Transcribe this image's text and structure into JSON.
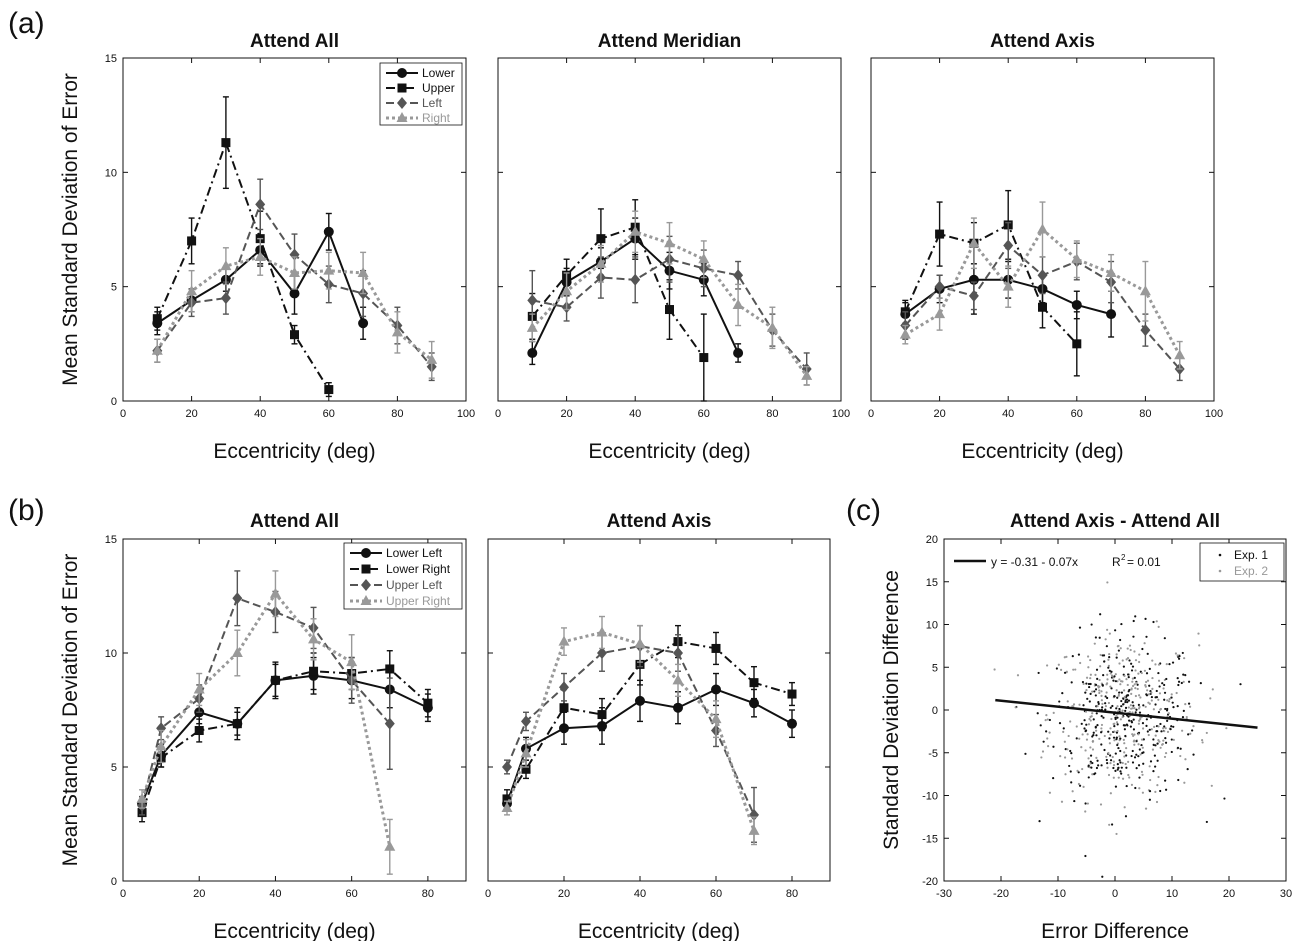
{
  "figure": {
    "panel_labels": [
      "(a)",
      "(b)",
      "(c)"
    ]
  },
  "chart_data": [
    {
      "type": "line",
      "panel": "(a)",
      "title": "Attend All",
      "xlabel": "Eccentricity (deg)",
      "ylabel": "Mean Standard Deviation of Error",
      "xlim": [
        0,
        100
      ],
      "ylim": [
        0,
        15
      ],
      "xticks": [
        0,
        20,
        40,
        60,
        80,
        100
      ],
      "yticks": [
        0,
        5,
        10,
        15
      ],
      "legend": "top-right",
      "series": [
        {
          "name": "Lower",
          "style": "solid",
          "color": "#111111",
          "marker": "circle",
          "x": [
            10,
            20,
            30,
            40,
            50,
            60,
            70
          ],
          "y": [
            3.4,
            4.4,
            5.3,
            6.6,
            4.7,
            7.4,
            3.4
          ],
          "err": [
            0.5,
            0.5,
            0.5,
            0.6,
            0.9,
            0.8,
            0.7
          ]
        },
        {
          "name": "Upper",
          "style": "dashdot",
          "color": "#111111",
          "marker": "square",
          "x": [
            10,
            20,
            30,
            40,
            50,
            60
          ],
          "y": [
            3.6,
            7.0,
            11.3,
            7.1,
            2.9,
            0.5
          ],
          "err": [
            0.5,
            1.0,
            2.0,
            1.2,
            0.4,
            0.3
          ]
        },
        {
          "name": "Left",
          "style": "dashed",
          "color": "#555555",
          "marker": "diamond",
          "x": [
            10,
            20,
            30,
            40,
            50,
            60,
            70,
            80,
            90
          ],
          "y": [
            2.2,
            4.3,
            4.5,
            8.6,
            6.4,
            5.1,
            4.7,
            3.3,
            1.5
          ],
          "err": [
            0.5,
            0.6,
            0.7,
            1.1,
            0.9,
            0.8,
            1.0,
            0.8,
            0.6
          ]
        },
        {
          "name": "Right",
          "style": "dotted",
          "color": "#999999",
          "marker": "triangle",
          "x": [
            10,
            20,
            30,
            40,
            50,
            60,
            70,
            80,
            90
          ],
          "y": [
            2.2,
            4.8,
            5.9,
            6.3,
            5.6,
            5.7,
            5.6,
            3.0,
            1.8
          ],
          "err": [
            0.5,
            0.9,
            0.8,
            0.8,
            0.7,
            0.8,
            0.9,
            0.9,
            0.8
          ]
        }
      ]
    },
    {
      "type": "line",
      "panel": "(a)",
      "title": "Attend Meridian",
      "xlabel": "Eccentricity (deg)",
      "xlim": [
        0,
        100
      ],
      "ylim": [
        0,
        15
      ],
      "xticks": [
        0,
        20,
        40,
        60,
        80,
        100
      ],
      "series": [
        {
          "style": "solid",
          "color": "#111111",
          "marker": "circle",
          "x": [
            10,
            20,
            30,
            40,
            50,
            60,
            70
          ],
          "y": [
            2.1,
            5.2,
            6.1,
            7.1,
            5.7,
            5.3,
            2.1
          ],
          "err": [
            0.5,
            0.6,
            0.6,
            0.9,
            0.8,
            0.7,
            0.4
          ]
        },
        {
          "style": "dashdot",
          "color": "#111111",
          "marker": "square",
          "x": [
            10,
            20,
            30,
            40,
            50,
            60
          ],
          "y": [
            3.7,
            5.5,
            7.1,
            7.6,
            4.0,
            1.9
          ],
          "err": [
            1.0,
            0.7,
            1.3,
            1.2,
            1.3,
            1.9
          ]
        },
        {
          "style": "dashed",
          "color": "#555555",
          "marker": "diamond",
          "x": [
            10,
            20,
            30,
            40,
            50,
            60,
            70,
            80,
            90
          ],
          "y": [
            4.4,
            4.1,
            5.4,
            5.3,
            6.2,
            5.8,
            5.5,
            3.1,
            1.4
          ],
          "err": [
            1.3,
            0.6,
            0.9,
            1.0,
            1.0,
            0.8,
            0.6,
            0.7,
            0.7
          ]
        },
        {
          "style": "dotted",
          "color": "#999999",
          "marker": "triangle",
          "x": [
            10,
            20,
            30,
            40,
            50,
            60,
            70,
            80,
            90
          ],
          "y": [
            3.2,
            4.8,
            6.0,
            7.4,
            6.9,
            6.2,
            4.2,
            3.2,
            1.1
          ],
          "err": [
            0.6,
            0.8,
            0.8,
            0.9,
            0.9,
            0.8,
            0.9,
            0.9,
            0.4
          ]
        }
      ]
    },
    {
      "type": "line",
      "panel": "(a)",
      "title": "Attend Axis",
      "xlabel": "Eccentricity (deg)",
      "xlim": [
        0,
        100
      ],
      "ylim": [
        0,
        15
      ],
      "xticks": [
        0,
        20,
        40,
        60,
        80,
        100
      ],
      "series": [
        {
          "style": "solid",
          "color": "#111111",
          "marker": "circle",
          "x": [
            10,
            20,
            30,
            40,
            50,
            60,
            70
          ],
          "y": [
            3.8,
            4.9,
            5.3,
            5.3,
            4.9,
            4.2,
            3.8
          ],
          "err": [
            0.5,
            0.6,
            1.5,
            0.8,
            0.6,
            0.6,
            1.0
          ]
        },
        {
          "style": "dashdot",
          "color": "#111111",
          "marker": "square",
          "x": [
            10,
            20,
            30,
            40,
            50,
            60
          ],
          "y": [
            3.9,
            7.3,
            6.9,
            7.7,
            4.1,
            2.5
          ],
          "err": [
            0.5,
            1.4,
            0.9,
            1.5,
            0.9,
            1.4
          ]
        },
        {
          "style": "dashed",
          "color": "#555555",
          "marker": "diamond",
          "x": [
            10,
            20,
            30,
            40,
            50,
            60,
            70,
            80,
            90
          ],
          "y": [
            3.3,
            5.0,
            4.6,
            6.8,
            5.5,
            6.1,
            5.2,
            3.1,
            1.4
          ],
          "err": [
            0.6,
            0.5,
            0.6,
            1.0,
            0.8,
            0.8,
            0.9,
            0.7,
            0.5
          ]
        },
        {
          "style": "dotted",
          "color": "#999999",
          "marker": "triangle",
          "x": [
            10,
            20,
            30,
            40,
            50,
            60,
            70,
            80,
            90
          ],
          "y": [
            2.9,
            3.8,
            6.9,
            5.0,
            7.5,
            6.2,
            5.6,
            4.8,
            2.0
          ],
          "err": [
            0.4,
            0.7,
            1.1,
            0.9,
            1.2,
            0.8,
            0.8,
            1.3,
            0.6
          ]
        }
      ]
    },
    {
      "type": "line",
      "panel": "(b)",
      "title": "Attend All",
      "xlabel": "Eccentricity (deg)",
      "ylabel": "Mean Standard Deviation of Error",
      "xlim": [
        0,
        90
      ],
      "ylim": [
        0,
        15
      ],
      "xticks": [
        0,
        20,
        40,
        60,
        80
      ],
      "yticks": [
        0,
        5,
        10,
        15
      ],
      "legend": "top-right",
      "series": [
        {
          "name": "Lower Left",
          "style": "solid",
          "color": "#111111",
          "marker": "circle",
          "x": [
            5,
            10,
            20,
            30,
            40,
            50,
            60,
            70,
            80
          ],
          "y": [
            3.4,
            5.5,
            7.4,
            6.9,
            8.8,
            9.0,
            8.8,
            8.4,
            7.6
          ],
          "err": [
            0.3,
            0.5,
            0.5,
            0.7,
            0.8,
            0.8,
            0.8,
            0.8,
            0.6
          ]
        },
        {
          "name": "Lower Right",
          "style": "dashdot",
          "color": "#111111",
          "marker": "square",
          "x": [
            5,
            10,
            20,
            30,
            40,
            50,
            60,
            70,
            80
          ],
          "y": [
            3.0,
            5.4,
            6.6,
            6.9,
            8.8,
            9.2,
            9.1,
            9.3,
            7.8
          ],
          "err": [
            0.4,
            0.4,
            0.5,
            0.5,
            0.7,
            0.8,
            0.7,
            0.8,
            0.6
          ]
        },
        {
          "name": "Upper Left",
          "style": "dashed",
          "color": "#555555",
          "marker": "diamond",
          "x": [
            5,
            10,
            20,
            30,
            40,
            50,
            60,
            70
          ],
          "y": [
            3.3,
            6.7,
            8.0,
            12.4,
            11.8,
            11.1,
            8.8,
            6.9
          ],
          "err": [
            0.4,
            0.5,
            0.6,
            1.2,
            0.9,
            0.9,
            1.0,
            2.0
          ]
        },
        {
          "name": "Upper Right",
          "style": "dotted",
          "color": "#999999",
          "marker": "triangle",
          "x": [
            5,
            10,
            20,
            30,
            40,
            50,
            60,
            70
          ],
          "y": [
            3.6,
            5.9,
            8.4,
            10.0,
            12.6,
            10.6,
            9.6,
            1.5
          ],
          "err": [
            0.4,
            0.7,
            0.7,
            1.0,
            1.0,
            0.9,
            1.2,
            1.2
          ]
        }
      ]
    },
    {
      "type": "line",
      "panel": "(b)",
      "title": "Attend Axis",
      "xlabel": "Eccentricity (deg)",
      "xlim": [
        0,
        90
      ],
      "ylim": [
        0,
        15
      ],
      "xticks": [
        0,
        20,
        40,
        60,
        80
      ],
      "series": [
        {
          "style": "solid",
          "color": "#111111",
          "marker": "circle",
          "x": [
            5,
            10,
            20,
            30,
            40,
            50,
            60,
            70,
            80
          ],
          "y": [
            3.4,
            5.8,
            6.7,
            6.8,
            7.9,
            7.6,
            8.4,
            7.8,
            6.9
          ],
          "err": [
            0.3,
            0.5,
            0.7,
            0.8,
            0.9,
            0.7,
            0.7,
            0.6,
            0.6
          ]
        },
        {
          "style": "dashdot",
          "color": "#111111",
          "marker": "square",
          "x": [
            5,
            10,
            20,
            30,
            40,
            50,
            60,
            70,
            80
          ],
          "y": [
            3.6,
            4.9,
            7.6,
            7.3,
            9.5,
            10.5,
            10.2,
            8.7,
            8.2
          ],
          "err": [
            0.4,
            0.4,
            0.8,
            0.7,
            0.9,
            0.7,
            0.7,
            0.7,
            0.5
          ]
        },
        {
          "style": "dashed",
          "color": "#555555",
          "marker": "diamond",
          "x": [
            5,
            10,
            20,
            30,
            40,
            50,
            60,
            70
          ],
          "y": [
            5.0,
            7.0,
            8.5,
            10.0,
            10.3,
            10.0,
            6.6,
            2.9
          ],
          "err": [
            0.3,
            0.4,
            0.6,
            0.8,
            0.9,
            0.8,
            0.7,
            1.2
          ]
        },
        {
          "style": "dotted",
          "color": "#999999",
          "marker": "triangle",
          "x": [
            5,
            10,
            20,
            30,
            40,
            50,
            60,
            70
          ],
          "y": [
            3.2,
            5.6,
            10.5,
            10.9,
            10.4,
            8.8,
            7.1,
            2.2
          ],
          "err": [
            0.3,
            0.6,
            0.6,
            0.7,
            0.8,
            0.7,
            0.8,
            0.6
          ]
        }
      ]
    },
    {
      "type": "scatter",
      "panel": "(c)",
      "title": "Attend Axis - Attend All",
      "xlabel": "Error Difference",
      "ylabel": "Standard Deviation Difference",
      "xlim": [
        -30,
        30
      ],
      "ylim": [
        -20,
        20
      ],
      "xticks": [
        -30,
        -20,
        -10,
        0,
        10,
        20,
        30
      ],
      "yticks": [
        -20,
        -15,
        -10,
        -5,
        0,
        5,
        10,
        15,
        20
      ],
      "legend": "top-right",
      "series": [
        {
          "name": "Exp. 1",
          "color": "#111111"
        },
        {
          "name": "Exp. 2",
          "color": "#999999"
        }
      ],
      "point_cloud": {
        "n": 700,
        "x_mean": 1.5,
        "x_sd": 6.5,
        "y_mean": -0.8,
        "y_sd": 4.8
      },
      "fit": {
        "intercept": -0.31,
        "slope": -0.07,
        "x_range": [
          -21,
          25
        ]
      },
      "fit_label": "y = -0.31 - 0.07x",
      "r2_label": "R",
      "r2_sup": "2",
      "r2_value": "= 0.01"
    }
  ]
}
